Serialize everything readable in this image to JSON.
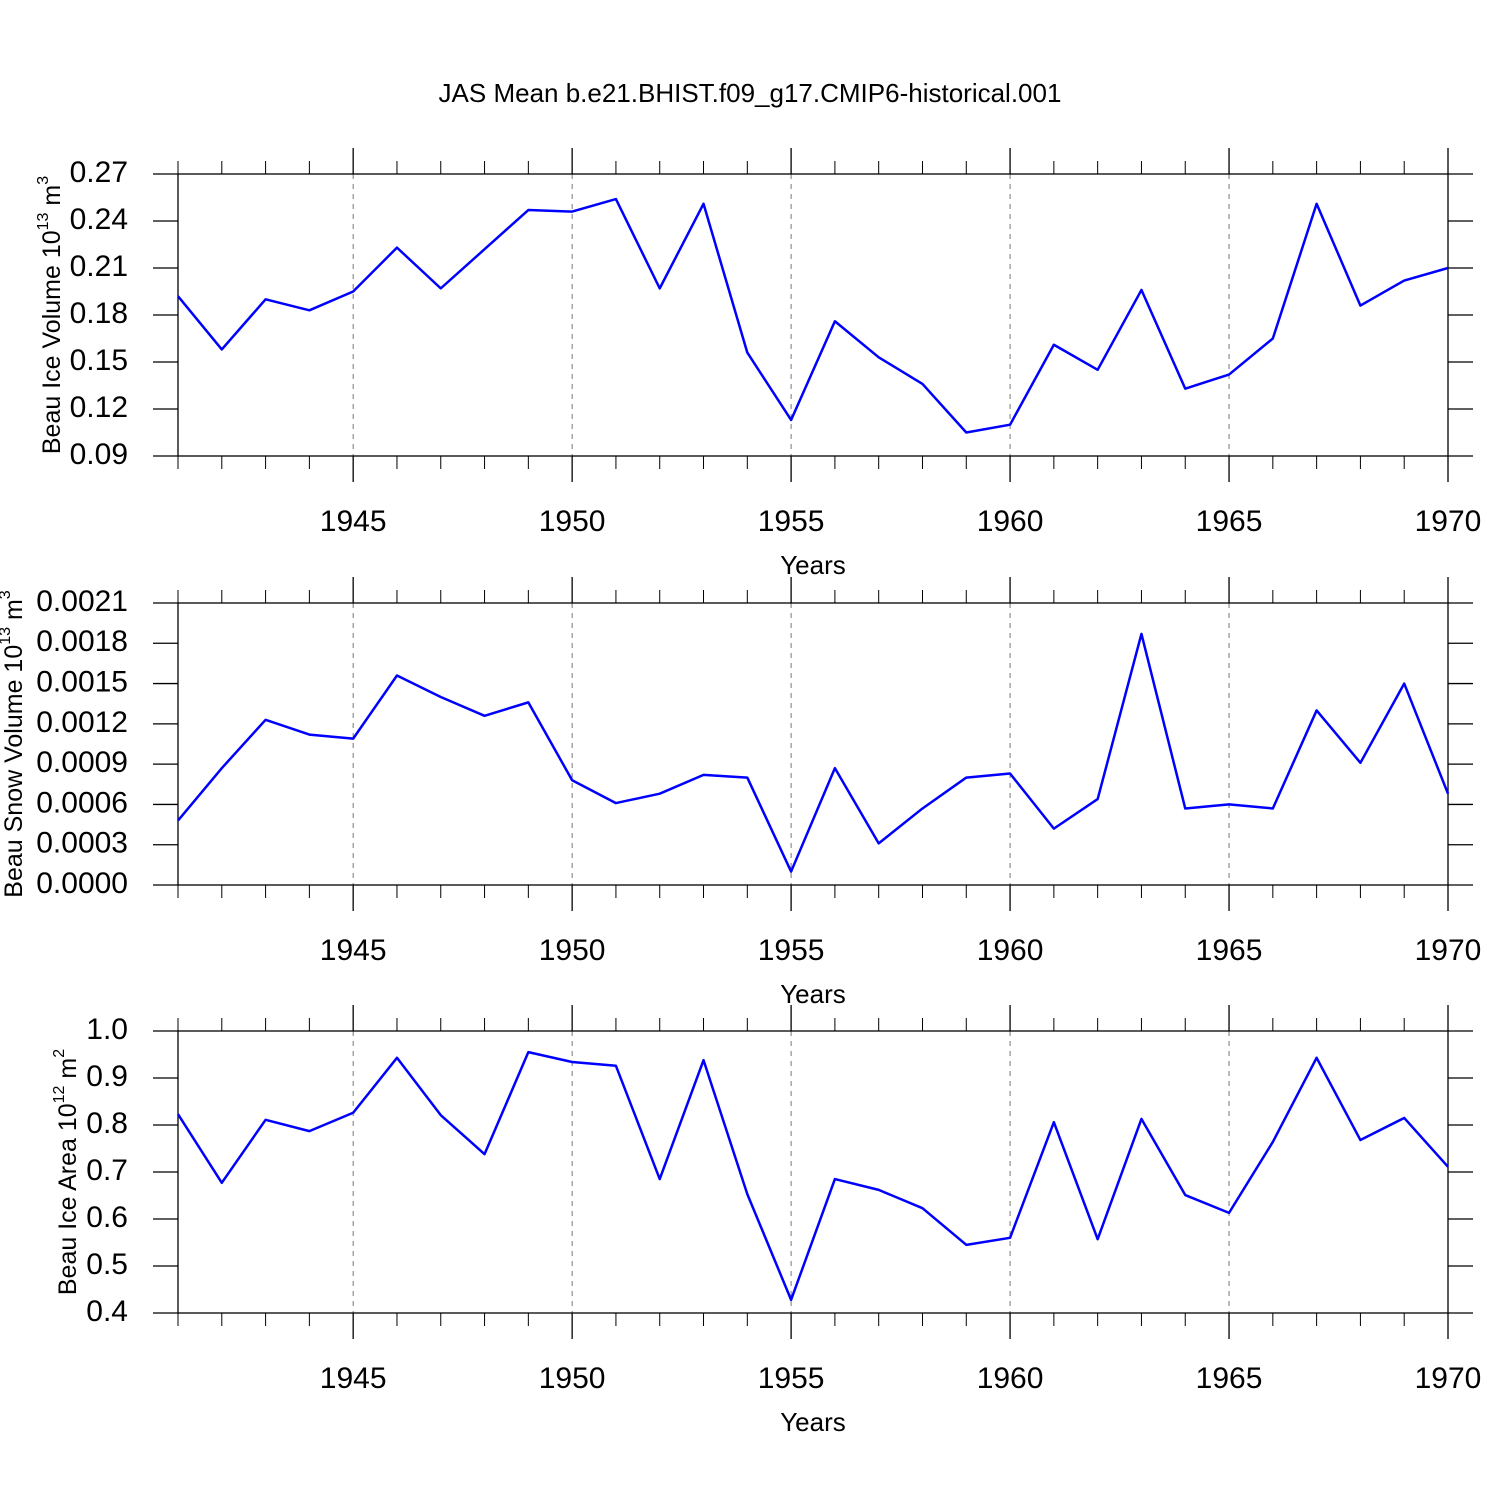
{
  "title": "JAS Mean b.e21.BHIST.f09_g17.CMIP6-historical.001",
  "chart_data": [
    {
      "type": "line",
      "ylabel": [
        "Beau Ice Volume 10",
        "13",
        " m",
        "3"
      ],
      "xlabel": "Years",
      "x": [
        1941,
        1942,
        1943,
        1944,
        1945,
        1946,
        1947,
        1948,
        1949,
        1950,
        1951,
        1952,
        1953,
        1954,
        1955,
        1956,
        1957,
        1958,
        1959,
        1960,
        1961,
        1962,
        1963,
        1964,
        1965,
        1966,
        1967,
        1968,
        1969,
        1970
      ],
      "xlim": [
        1941,
        1970
      ],
      "xticks": [
        1945,
        1950,
        1955,
        1960,
        1965,
        1970
      ],
      "xminorticks": [
        1941,
        1942,
        1943,
        1944,
        1946,
        1947,
        1948,
        1949,
        1951,
        1952,
        1953,
        1954,
        1956,
        1957,
        1958,
        1959,
        1961,
        1962,
        1963,
        1964,
        1966,
        1967,
        1968,
        1969
      ],
      "ylim": [
        0.09,
        0.27
      ],
      "yticks": [
        0.09,
        0.12,
        0.15,
        0.18,
        0.21,
        0.24,
        0.27
      ],
      "grid": true,
      "series": [
        {
          "color": "#0000ff",
          "values": [
            0.192,
            0.158,
            0.19,
            0.183,
            0.195,
            0.223,
            0.197,
            0.222,
            0.247,
            0.246,
            0.254,
            0.197,
            0.251,
            0.156,
            0.113,
            0.176,
            0.153,
            0.136,
            0.105,
            0.11,
            0.161,
            0.145,
            0.196,
            0.133,
            0.142,
            0.165,
            0.251,
            0.186,
            0.202,
            0.21
          ]
        }
      ]
    },
    {
      "type": "line",
      "ylabel": [
        "Beau Snow Volume 10",
        "13",
        " m",
        "3"
      ],
      "xlabel": "Years",
      "x": [
        1941,
        1942,
        1943,
        1944,
        1945,
        1946,
        1947,
        1948,
        1949,
        1950,
        1951,
        1952,
        1953,
        1954,
        1955,
        1956,
        1957,
        1958,
        1959,
        1960,
        1961,
        1962,
        1963,
        1964,
        1965,
        1966,
        1967,
        1968,
        1969,
        1970
      ],
      "xlim": [
        1941,
        1970
      ],
      "xticks": [
        1945,
        1950,
        1955,
        1960,
        1965,
        1970
      ],
      "xminorticks": [
        1941,
        1942,
        1943,
        1944,
        1946,
        1947,
        1948,
        1949,
        1951,
        1952,
        1953,
        1954,
        1956,
        1957,
        1958,
        1959,
        1961,
        1962,
        1963,
        1964,
        1966,
        1967,
        1968,
        1969
      ],
      "ylim": [
        0,
        0.0021
      ],
      "yticks": [
        {
          "value": 0,
          "label": "0.0000"
        },
        0.0003,
        0.0006,
        0.0009,
        0.0012,
        0.0015,
        0.0018,
        0.0021
      ],
      "grid": true,
      "series": [
        {
          "color": "#0000ff",
          "values": [
            0.00048,
            0.00087,
            0.00123,
            0.00112,
            0.00109,
            0.00156,
            0.0014,
            0.00126,
            0.00136,
            0.00078,
            0.00061,
            0.00068,
            0.00082,
            0.0008,
            0.0001,
            0.00087,
            0.00031,
            0.00057,
            0.0008,
            0.00083,
            0.00042,
            0.00064,
            0.00187,
            0.00057,
            0.0006,
            0.00057,
            0.0013,
            0.00091,
            0.0015,
            0.00068
          ]
        }
      ]
    },
    {
      "type": "line",
      "ylabel": [
        "Beau Ice Area 10",
        "12",
        " m",
        "2"
      ],
      "xlabel": "Years",
      "x": [
        1941,
        1942,
        1943,
        1944,
        1945,
        1946,
        1947,
        1948,
        1949,
        1950,
        1951,
        1952,
        1953,
        1954,
        1955,
        1956,
        1957,
        1958,
        1959,
        1960,
        1961,
        1962,
        1963,
        1964,
        1965,
        1966,
        1967,
        1968,
        1969,
        1970
      ],
      "xlim": [
        1941,
        1970
      ],
      "xticks": [
        1945,
        1950,
        1955,
        1960,
        1965,
        1970
      ],
      "xminorticks": [
        1941,
        1942,
        1943,
        1944,
        1946,
        1947,
        1948,
        1949,
        1951,
        1952,
        1953,
        1954,
        1956,
        1957,
        1958,
        1959,
        1961,
        1962,
        1963,
        1964,
        1966,
        1967,
        1968,
        1969
      ],
      "ylim": [
        0.4,
        1.0
      ],
      "yticks": [
        0.4,
        0.5,
        0.6,
        0.7,
        0.8,
        0.9,
        {
          "value": 1.0,
          "label": "1.0"
        }
      ],
      "grid": true,
      "series": [
        {
          "color": "#0000ff",
          "values": [
            0.823,
            0.677,
            0.811,
            0.787,
            0.826,
            0.943,
            0.821,
            0.738,
            0.955,
            0.934,
            0.926,
            0.685,
            0.938,
            0.653,
            0.428,
            0.685,
            0.662,
            0.623,
            0.545,
            0.56,
            0.806,
            0.557,
            0.813,
            0.651,
            0.613,
            0.764,
            0.943,
            0.768,
            0.815,
            0.711
          ]
        }
      ]
    }
  ]
}
